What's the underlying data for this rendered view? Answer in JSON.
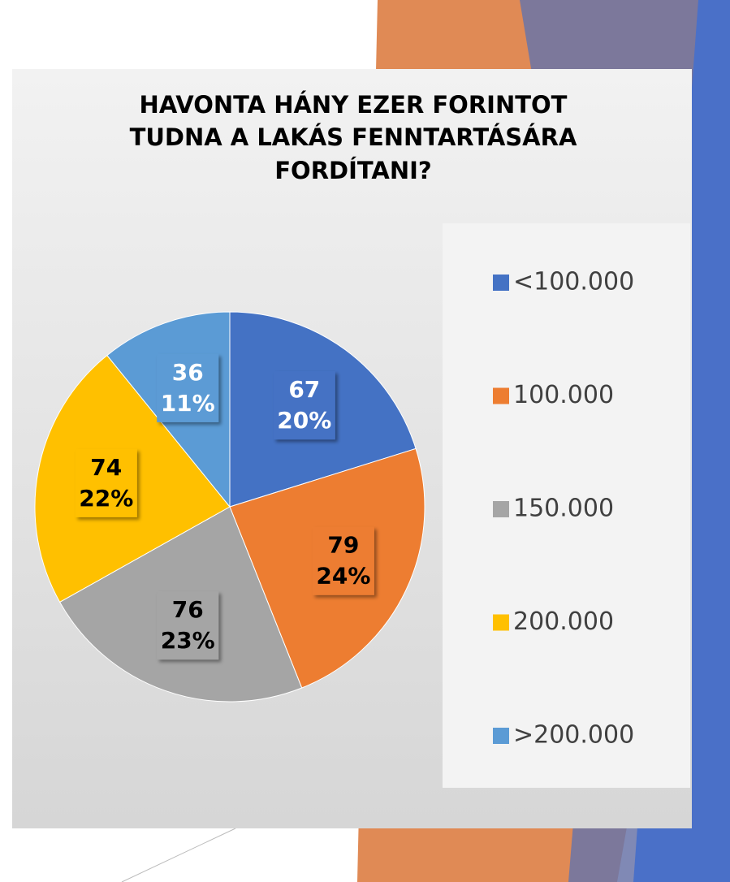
{
  "chart_data": {
    "type": "pie",
    "title": [
      "HAVONTA HÁNY EZER FORINTOT",
      "TUDNA A LAKÁS FENNTARTÁSÁRA",
      "FORDÍTANI?"
    ],
    "categories": [
      "<100.000",
      "100.000",
      "150.000",
      "200.000",
      ">200.000"
    ],
    "values": [
      67,
      79,
      76,
      74,
      36
    ],
    "percent_labels": [
      "20%",
      "24%",
      "23%",
      "22%",
      "11%"
    ],
    "colors": [
      "#4472c4",
      "#ed7d31",
      "#a5a5a5",
      "#ffc000",
      "#5b9bd5"
    ],
    "label_colors": [
      "#ffffff",
      "#000000",
      "#000000",
      "#000000",
      "#ffffff"
    ],
    "legend": "right"
  }
}
